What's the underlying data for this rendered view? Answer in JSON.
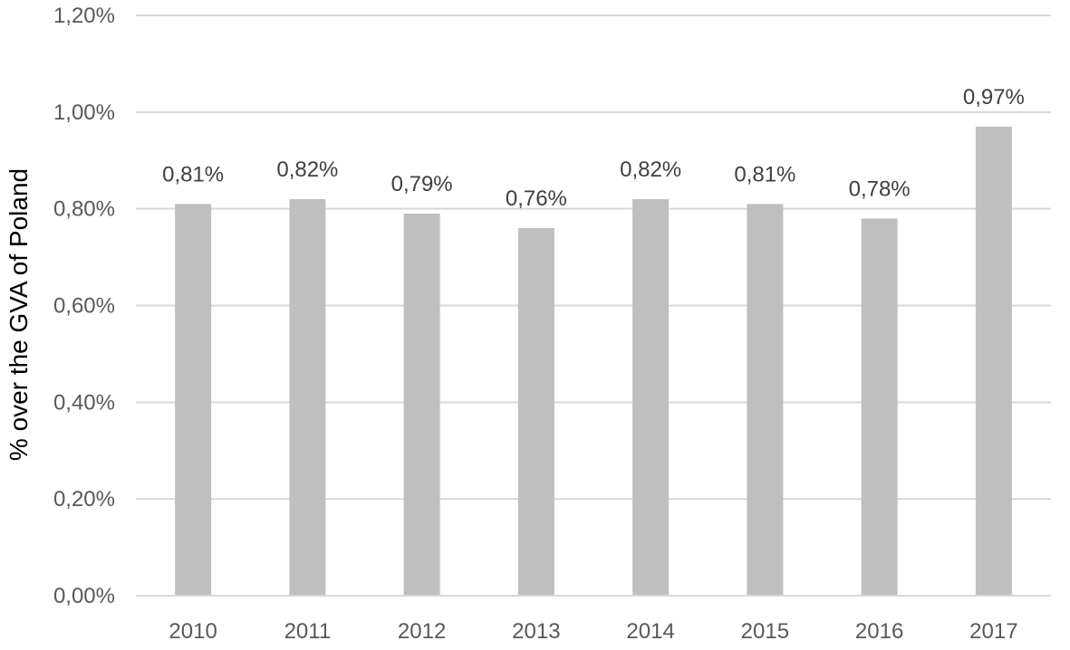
{
  "chart_data": {
    "type": "bar",
    "categories": [
      "2010",
      "2011",
      "2012",
      "2013",
      "2014",
      "2015",
      "2016",
      "2017"
    ],
    "values": [
      0.81,
      0.82,
      0.79,
      0.76,
      0.82,
      0.81,
      0.78,
      0.97
    ],
    "data_labels": [
      "0,81%",
      "0,82%",
      "0,79%",
      "0,76%",
      "0,82%",
      "0,81%",
      "0,78%",
      "0,97%"
    ],
    "title": "",
    "xlabel": "",
    "ylabel": "% over the GVA of Poland",
    "ylim": [
      0,
      1.2
    ],
    "yticks": [
      0,
      0.2,
      0.4,
      0.6,
      0.8,
      1.0,
      1.2
    ],
    "ytick_labels": [
      "0,00%",
      "0,20%",
      "0,40%",
      "0,60%",
      "0,80%",
      "1,00%",
      "1,20%"
    ],
    "grid": true,
    "legend": "none",
    "colors": {
      "bar": "#bfbfbf",
      "grid": "#d9d9d9"
    }
  }
}
